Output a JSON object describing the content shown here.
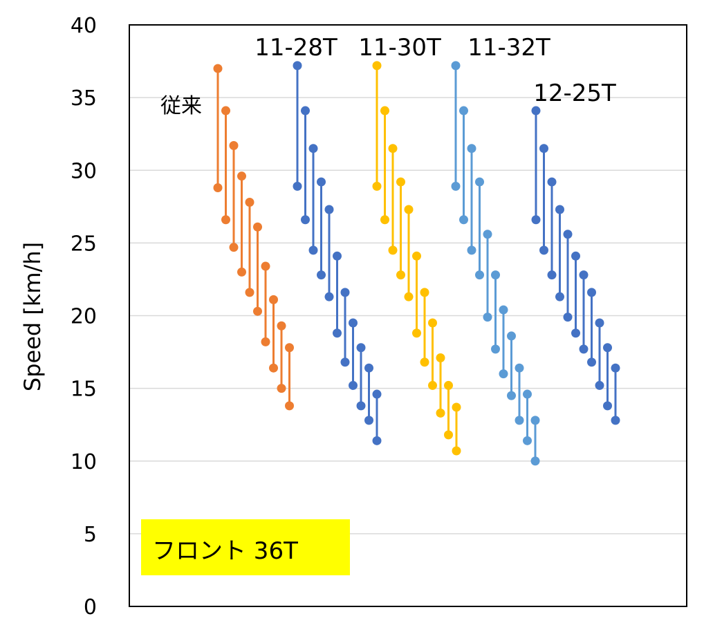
{
  "chart_data": {
    "type": "line",
    "title": "",
    "xlabel": "",
    "ylabel": "Speed [km/h]",
    "ylim": [
      0,
      40
    ],
    "y_ticks": [
      0,
      5,
      10,
      15,
      20,
      25,
      30,
      35,
      40
    ],
    "grid": true,
    "legend": "none",
    "box_label": "フロント 36T",
    "box_color": "#ffff00",
    "series": [
      {
        "label": "従来",
        "color": "#ed7d31",
        "shifts": [
          [
            37.0,
            28.8
          ],
          [
            34.1,
            26.6
          ],
          [
            31.7,
            24.7
          ],
          [
            29.6,
            23.0
          ],
          [
            27.8,
            21.6
          ],
          [
            26.1,
            20.3
          ],
          [
            23.4,
            18.2
          ],
          [
            21.1,
            16.4
          ],
          [
            19.3,
            15.0
          ],
          [
            17.8,
            13.8
          ]
        ]
      },
      {
        "label": "11-28T",
        "color": "#4472c4",
        "shifts": [
          [
            37.2,
            28.9
          ],
          [
            34.1,
            26.6
          ],
          [
            31.5,
            24.5
          ],
          [
            29.2,
            22.8
          ],
          [
            27.3,
            21.3
          ],
          [
            24.1,
            18.8
          ],
          [
            21.6,
            16.8
          ],
          [
            19.5,
            15.2
          ],
          [
            17.8,
            13.8
          ],
          [
            16.4,
            12.8
          ],
          [
            14.6,
            11.4
          ]
        ]
      },
      {
        "label": "11-30T",
        "color": "#ffc000",
        "shifts": [
          [
            37.2,
            28.9
          ],
          [
            34.1,
            26.6
          ],
          [
            31.5,
            24.5
          ],
          [
            29.2,
            22.8
          ],
          [
            27.3,
            21.3
          ],
          [
            24.1,
            18.8
          ],
          [
            21.6,
            16.8
          ],
          [
            19.5,
            15.2
          ],
          [
            17.1,
            13.3
          ],
          [
            15.2,
            11.8
          ],
          [
            13.7,
            10.7
          ]
        ]
      },
      {
        "label": "11-32T",
        "color": "#5b9bd5",
        "shifts": [
          [
            37.2,
            28.9
          ],
          [
            34.1,
            26.6
          ],
          [
            31.5,
            24.5
          ],
          [
            29.2,
            22.8
          ],
          [
            25.6,
            19.9
          ],
          [
            22.8,
            17.7
          ],
          [
            20.4,
            16.0
          ],
          [
            18.6,
            14.5
          ],
          [
            16.4,
            12.8
          ],
          [
            14.6,
            11.4
          ],
          [
            12.8,
            10.0
          ]
        ]
      },
      {
        "label": "12-25T",
        "color": "#4472c4",
        "shifts": [
          [
            34.1,
            26.6
          ],
          [
            31.5,
            24.5
          ],
          [
            29.2,
            22.8
          ],
          [
            27.3,
            21.3
          ],
          [
            25.6,
            19.9
          ],
          [
            24.1,
            18.8
          ],
          [
            22.8,
            17.7
          ],
          [
            21.6,
            16.8
          ],
          [
            19.5,
            15.2
          ],
          [
            17.8,
            13.8
          ],
          [
            16.4,
            12.8
          ]
        ]
      }
    ]
  }
}
